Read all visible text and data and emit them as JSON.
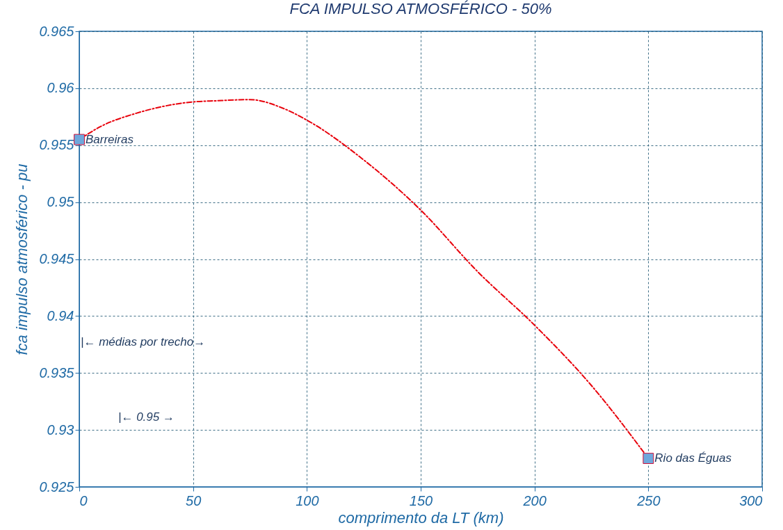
{
  "chart_data": {
    "type": "line",
    "title": "FCA IMPULSO ATMOSFÉRICO - 50%",
    "xlabel": "comprimento da LT (km)",
    "ylabel": "fca impulso atmosférico - pu",
    "xlim": [
      0,
      300
    ],
    "xticks": [
      0,
      50,
      100,
      150,
      200,
      250,
      300
    ],
    "ylim": [
      0.925,
      0.965
    ],
    "yticks": [
      0.925,
      0.93,
      0.935,
      0.94,
      0.945,
      0.95,
      0.955,
      0.96,
      0.965
    ],
    "grid": true,
    "series": [
      {
        "color": "#e8000b",
        "line_style": "dashed",
        "marker": "none",
        "x": [
          0,
          10,
          25,
          50,
          60,
          75,
          90,
          100,
          125,
          150,
          175,
          200,
          225,
          250
        ],
        "values": [
          0.9555,
          0.9567,
          0.9578,
          0.9588,
          0.9589,
          0.959,
          0.9582,
          0.9572,
          0.9537,
          0.9493,
          0.9439,
          0.9392,
          0.9339,
          0.9275
        ]
      },
      {
        "type": "scatter",
        "color": "#6fa8dc",
        "marker": "square",
        "x": [
          0,
          250
        ],
        "values": [
          0.9555,
          0.9275
        ]
      }
    ],
    "annotations": [
      {
        "text": "Barreiras",
        "x": 0,
        "y": 0.9555
      },
      {
        "text": "Rio das Éguas",
        "x": 250,
        "y": 0.9275
      },
      "|← médias por trecho→",
      "|← 0.95 →"
    ]
  }
}
